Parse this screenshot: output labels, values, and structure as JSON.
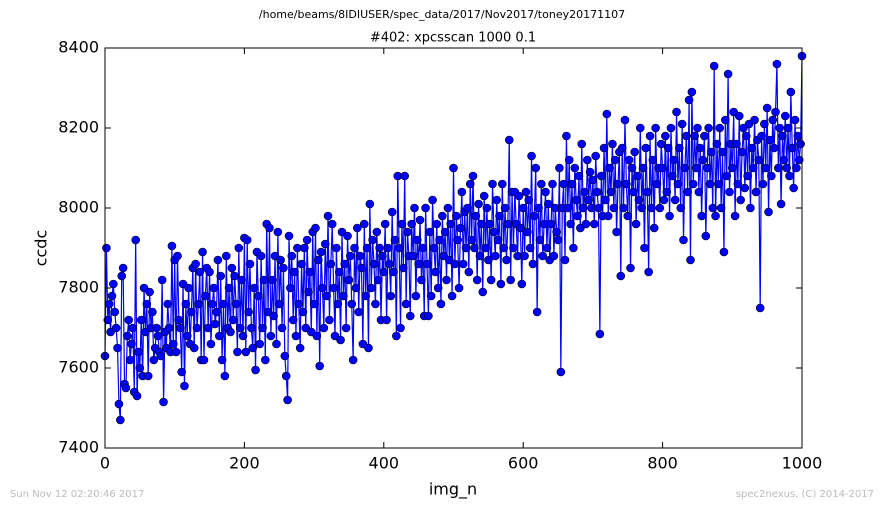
{
  "header": "/home/beams/8IDIUSER/spec_data/2017/Nov2017/toney20171107",
  "footer_left": "Sun Nov 12 02:20:46 2017",
  "footer_right": "spec2nexus, (C) 2014-2017",
  "chart_data": {
    "type": "line",
    "title": "#402: xpcsscan 1000 0.1",
    "x_label": "img_n",
    "y_label": "ccdc",
    "xlim": [
      0,
      1000
    ],
    "ylim": [
      7400,
      8400
    ],
    "xticks": [
      0,
      200,
      400,
      600,
      800,
      1000
    ],
    "yticks": [
      7400,
      7600,
      7800,
      8000,
      8200,
      8400
    ],
    "color": "#0000ff",
    "marker": "circle",
    "series": [
      {
        "name": "ccdc",
        "color": "#0000ff",
        "x": [
          0,
          2,
          4,
          6,
          8,
          10,
          12,
          14,
          16,
          18,
          20,
          22,
          24,
          26,
          28,
          30,
          32,
          34,
          36,
          38,
          40,
          42,
          44,
          46,
          48,
          50,
          52,
          54,
          56,
          58,
          60,
          62,
          64,
          66,
          68,
          70,
          72,
          74,
          76,
          78,
          80,
          82,
          84,
          86,
          88,
          90,
          92,
          94,
          96,
          98,
          100,
          102,
          104,
          106,
          108,
          110,
          112,
          114,
          116,
          118,
          120,
          122,
          124,
          126,
          128,
          130,
          132,
          134,
          136,
          138,
          140,
          142,
          144,
          146,
          148,
          150,
          152,
          154,
          156,
          158,
          160,
          162,
          164,
          166,
          168,
          170,
          172,
          174,
          176,
          178,
          180,
          182,
          184,
          186,
          188,
          190,
          192,
          194,
          196,
          198,
          200,
          202,
          204,
          206,
          208,
          210,
          212,
          214,
          216,
          218,
          220,
          222,
          224,
          226,
          228,
          230,
          232,
          234,
          236,
          238,
          240,
          242,
          244,
          246,
          248,
          250,
          252,
          254,
          256,
          258,
          260,
          262,
          264,
          266,
          268,
          270,
          272,
          274,
          276,
          278,
          280,
          282,
          284,
          286,
          288,
          290,
          292,
          294,
          296,
          298,
          300,
          302,
          304,
          306,
          308,
          310,
          312,
          314,
          316,
          318,
          320,
          322,
          324,
          326,
          328,
          330,
          332,
          334,
          336,
          338,
          340,
          342,
          344,
          346,
          348,
          350,
          352,
          354,
          356,
          358,
          360,
          362,
          364,
          366,
          368,
          370,
          372,
          374,
          376,
          378,
          380,
          382,
          384,
          386,
          388,
          390,
          392,
          394,
          396,
          398,
          400,
          402,
          404,
          406,
          408,
          410,
          412,
          414,
          416,
          418,
          420,
          422,
          424,
          426,
          428,
          430,
          432,
          434,
          436,
          438,
          440,
          442,
          444,
          446,
          448,
          450,
          452,
          454,
          456,
          458,
          460,
          462,
          464,
          466,
          468,
          470,
          472,
          474,
          476,
          478,
          480,
          482,
          484,
          486,
          488,
          490,
          492,
          494,
          496,
          498,
          500,
          502,
          504,
          506,
          508,
          510,
          512,
          514,
          516,
          518,
          520,
          522,
          524,
          526,
          528,
          530,
          532,
          534,
          536,
          538,
          540,
          542,
          544,
          546,
          548,
          550,
          552,
          554,
          556,
          558,
          560,
          562,
          564,
          566,
          568,
          570,
          572,
          574,
          576,
          578,
          580,
          582,
          584,
          586,
          588,
          590,
          592,
          594,
          596,
          598,
          600,
          602,
          604,
          606,
          608,
          610,
          612,
          614,
          616,
          618,
          620,
          622,
          624,
          626,
          628,
          630,
          632,
          634,
          636,
          638,
          640,
          642,
          644,
          646,
          648,
          650,
          652,
          654,
          656,
          658,
          660,
          662,
          664,
          666,
          668,
          670,
          672,
          674,
          676,
          678,
          680,
          682,
          684,
          686,
          688,
          690,
          692,
          694,
          696,
          698,
          700,
          702,
          704,
          706,
          708,
          710,
          712,
          714,
          716,
          718,
          720,
          722,
          724,
          726,
          728,
          730,
          732,
          734,
          736,
          738,
          740,
          742,
          744,
          746,
          748,
          750,
          752,
          754,
          756,
          758,
          760,
          762,
          764,
          766,
          768,
          770,
          772,
          774,
          776,
          778,
          780,
          782,
          784,
          786,
          788,
          790,
          792,
          794,
          796,
          798,
          800,
          802,
          804,
          806,
          808,
          810,
          812,
          814,
          816,
          818,
          820,
          822,
          824,
          826,
          828,
          830,
          832,
          834,
          836,
          838,
          840,
          842,
          844,
          846,
          848,
          850,
          852,
          854,
          856,
          858,
          860,
          862,
          864,
          866,
          868,
          870,
          872,
          874,
          876,
          878,
          880,
          882,
          884,
          886,
          888,
          890,
          892,
          894,
          896,
          898,
          900,
          902,
          904,
          906,
          908,
          910,
          912,
          914,
          916,
          918,
          920,
          922,
          924,
          926,
          928,
          930,
          932,
          934,
          936,
          938,
          940,
          942,
          944,
          946,
          948,
          950,
          952,
          954,
          956,
          958,
          960,
          962,
          964,
          966,
          968,
          970,
          972,
          974,
          976,
          978,
          980,
          982,
          984,
          986,
          988,
          990,
          992,
          994,
          996,
          998,
          1000
        ],
        "values": [
          7630,
          7900,
          7720,
          7760,
          7690,
          7780,
          7810,
          7740,
          7700,
          7650,
          7510,
          7470,
          7830,
          7850,
          7560,
          7550,
          7680,
          7720,
          7620,
          7660,
          7700,
          7540,
          7920,
          7530,
          7640,
          7600,
          7720,
          7580,
          7800,
          7690,
          7760,
          7580,
          7790,
          7700,
          7740,
          7620,
          7650,
          7700,
          7680,
          7640,
          7630,
          7820,
          7515,
          7690,
          7650,
          7760,
          7700,
          7640,
          7905,
          7660,
          7870,
          7640,
          7880,
          7720,
          7700,
          7590,
          7810,
          7555,
          7760,
          7680,
          7800,
          7660,
          7740,
          7850,
          7650,
          7860,
          7700,
          7760,
          7840,
          7620,
          7890,
          7620,
          7780,
          7850,
          7700,
          7840,
          7660,
          7760,
          7800,
          7710,
          7740,
          7870,
          7680,
          7830,
          7620,
          7760,
          7580,
          7880,
          7700,
          7800,
          7690,
          7850,
          7720,
          7830,
          7760,
          7640,
          7900,
          7700,
          7820,
          7680,
          7925,
          7640,
          7920,
          7740,
          7860,
          7700,
          7650,
          7800,
          7595,
          7890,
          7780,
          7660,
          7880,
          7700,
          7820,
          7620,
          7960,
          7740,
          7950,
          7680,
          7820,
          7730,
          7880,
          7660,
          7940,
          7760,
          7870,
          7700,
          7850,
          7630,
          7580,
          7520,
          7930,
          7800,
          7880,
          7720,
          7840,
          7680,
          7900,
          7760,
          7650,
          7860,
          7740,
          7900,
          7700,
          7920,
          7790,
          7840,
          7690,
          7940,
          7760,
          7950,
          7680,
          7870,
          7605,
          7890,
          7800,
          7700,
          7910,
          7780,
          7980,
          7720,
          7860,
          7960,
          7800,
          7680,
          7900,
          7760,
          7840,
          7670,
          7940,
          7780,
          7860,
          7700,
          7930,
          7820,
          7880,
          7760,
          7620,
          7900,
          7800,
          7950,
          7740,
          7880,
          7850,
          7660,
          7960,
          7780,
          7900,
          7650,
          8010,
          7800,
          7920,
          7860,
          7760,
          7940,
          7820,
          7900,
          7720,
          7880,
          7840,
          7960,
          7720,
          7900,
          7860,
          7780,
          7990,
          7840,
          7920,
          7680,
          8080,
          7900,
          7700,
          7960,
          7850,
          8080,
          7760,
          7940,
          7880,
          7730,
          7960,
          7880,
          8000,
          7780,
          7920,
          7860,
          7970,
          7820,
          7900,
          7730,
          8000,
          7860,
          7730,
          7940,
          7780,
          8020,
          7900,
          7840,
          7960,
          7800,
          7920,
          7760,
          7980,
          7880,
          7940,
          7820,
          8000,
          7870,
          7960,
          7780,
          8100,
          7860,
          7980,
          7920,
          7800,
          7950,
          8040,
          7860,
          7990,
          7900,
          8000,
          7840,
          8060,
          7920,
          8080,
          7900,
          7980,
          7820,
          8010,
          7880,
          7960,
          7790,
          8030,
          7900,
          8000,
          7870,
          7960,
          7820,
          8060,
          7940,
          7880,
          8020,
          7920,
          7980,
          7810,
          8060,
          7900,
          8000,
          7870,
          7960,
          8170,
          7820,
          8040,
          7900,
          8040,
          7960,
          7880,
          8030,
          7950,
          7810,
          8000,
          7880,
          8040,
          7940,
          8020,
          7900,
          8130,
          7860,
          7980,
          8100,
          7740,
          8000,
          7920,
          8060,
          7880,
          7960,
          8040,
          7900,
          8010,
          7870,
          7960,
          8060,
          7880,
          8000,
          7940,
          7920,
          8100,
          7590,
          8000,
          8060,
          7870,
          8180,
          8000,
          8120,
          7960,
          8060,
          7900,
          8100,
          8020,
          7980,
          8080,
          7950,
          8160,
          8000,
          8040,
          7960,
          8120,
          8020,
          8090,
          8000,
          8070,
          7960,
          8130,
          8040,
          8000,
          7685,
          8080,
          7980,
          8150,
          8020,
          8235,
          7980,
          8100,
          8040,
          8160,
          8000,
          8120,
          7940,
          8060,
          8140,
          7830,
          8150,
          8000,
          8220,
          8060,
          7980,
          8120,
          7850,
          8100,
          8040,
          8140,
          7960,
          8080,
          8020,
          8200,
          8000,
          8100,
          7900,
          8150,
          8040,
          7840,
          8180,
          8000,
          8120,
          7950,
          8200,
          8060,
          8100,
          8000,
          8160,
          8100,
          8020,
          8180,
          8040,
          8150,
          7980,
          8200,
          8080,
          8120,
          8020,
          8240,
          8060,
          8150,
          8000,
          8210,
          7920,
          8100,
          8180,
          8040,
          8270,
          7870,
          8290,
          8060,
          8180,
          8100,
          8200,
          8040,
          8150,
          7980,
          8120,
          8180,
          7930,
          8100,
          8200,
          8060,
          8140,
          8000,
          8355,
          7980,
          8160,
          8060,
          8200,
          8000,
          8140,
          7890,
          8220,
          8080,
          8335,
          8040,
          8160,
          8100,
          8240,
          7980,
          8160,
          8060,
          8230,
          8020,
          8140,
          8200,
          8050,
          8180,
          8080,
          8210,
          8000,
          8150,
          8100,
          8220,
          8040,
          8170,
          8120,
          7750,
          8180,
          8060,
          8210,
          8100,
          8250,
          7990,
          8170,
          8080,
          8220,
          8150,
          8240,
          8360,
          8100,
          8200,
          8010,
          8180,
          8120,
          8230,
          8100,
          8200,
          8080,
          8290,
          8150,
          8050,
          8220,
          8100,
          8180,
          8120,
          8160,
          8380
        ]
      }
    ]
  }
}
